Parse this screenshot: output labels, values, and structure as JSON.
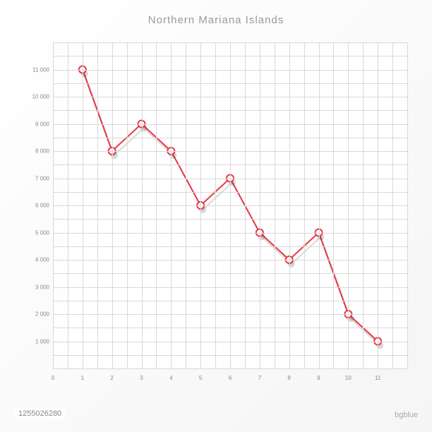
{
  "chart": {
    "type": "line",
    "title": "Northern Mariana Islands",
    "title_color": "#999999",
    "title_fontsize": 15,
    "x_values": [
      1,
      2,
      3,
      4,
      5,
      6,
      7,
      8,
      9,
      10,
      11
    ],
    "y_values": [
      11000,
      8000,
      9000,
      8000,
      6000,
      7000,
      5000,
      4000,
      5000,
      2000,
      1000
    ],
    "line_color": "#e63946",
    "line_width": 2,
    "marker_fill": "#ffffff",
    "marker_stroke": "#e63946",
    "marker_stroke_width": 2,
    "marker_radius": 5,
    "shadow_color": "rgba(0,0,0,0.15)",
    "shadow_offset_x": 3,
    "shadow_offset_y": 6,
    "xlim": [
      0,
      12
    ],
    "ylim": [
      0,
      12000
    ],
    "x_ticks": [
      0,
      1,
      2,
      3,
      4,
      5,
      6,
      7,
      8,
      9,
      10,
      11
    ],
    "x_tick_labels": [
      "0",
      "1",
      "2",
      "3",
      "4",
      "5",
      "6",
      "7",
      "8",
      "9",
      "10",
      "11"
    ],
    "y_ticks": [
      1000,
      2000,
      3000,
      4000,
      5000,
      6000,
      7000,
      8000,
      9000,
      10000,
      11000
    ],
    "y_tick_labels": [
      "1 000",
      "2 000",
      "3 000",
      "4 000",
      "5 000",
      "6 000",
      "7 000",
      "8 000",
      "9 000",
      "10 000",
      "11 000"
    ],
    "grid_color": "#d8d8d8",
    "background_color": "#ffffff",
    "label_fontsize": 8,
    "label_color": "#888888",
    "grid_subdivisions_x": 24,
    "grid_subdivisions_y": 24
  },
  "watermark": {
    "id": "1255026280",
    "credit": "bgblue"
  }
}
